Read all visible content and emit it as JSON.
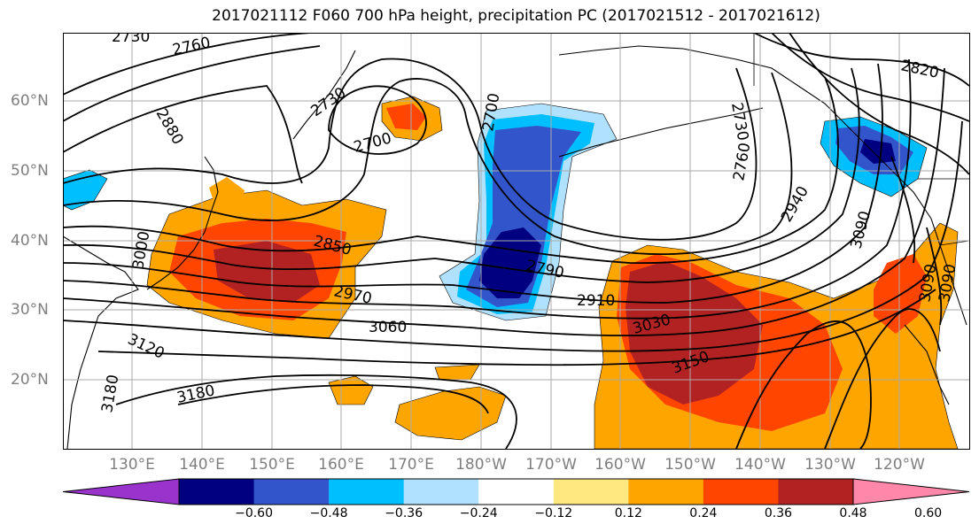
{
  "title": "2017021112 F060 700 hPa height, precipitation PC (2017021512 - 2017021612)",
  "lat_labels": [
    "60°N",
    "50°N",
    "40°N",
    "30°N",
    "20°N"
  ],
  "lon_labels": [
    "130°E",
    "140°E",
    "150°E",
    "160°E",
    "170°E",
    "180°W",
    "170°W",
    "160°W",
    "150°W",
    "140°W",
    "130°W",
    "120°W"
  ],
  "contour_labels": [
    "2730",
    "2760",
    "2880",
    "2730",
    "2700",
    "2700",
    "2730",
    "2760",
    "2820",
    "2940",
    "3090",
    "3090",
    "3000",
    "2850",
    "2970",
    "2790",
    "2910",
    "3060",
    "3030",
    "3120",
    "3150",
    "3180",
    "3180",
    "3090"
  ],
  "colorbar": {
    "ticks": [
      "−0.60",
      "−0.48",
      "−0.36",
      "−0.24",
      "−0.12",
      "0.12",
      "0.24",
      "0.36",
      "0.48",
      "0.60"
    ],
    "colors": [
      "#9933cc",
      "#000080",
      "#3355cc",
      "#00bfff",
      "#b0e2ff",
      "#ffffff",
      "#ffe880",
      "#ffa500",
      "#ff4500",
      "#b22222",
      "#ff88aa"
    ]
  },
  "map_colors": {
    "pos_light": "#ffe880",
    "pos_med": "#ffa500",
    "pos_strong": "#ff4500",
    "pos_max": "#b22222",
    "neg_light": "#b0e2ff",
    "neg_med": "#00bfff",
    "neg_strong": "#3355cc",
    "neg_max": "#000080"
  }
}
